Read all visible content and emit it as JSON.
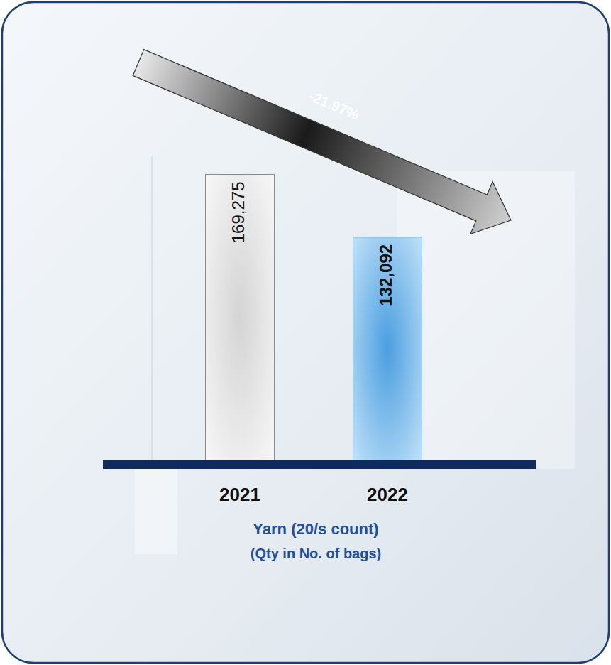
{
  "chart_data": {
    "type": "bar",
    "categories": [
      "2021",
      "2022"
    ],
    "values": [
      169275,
      132092
    ],
    "value_labels": [
      "169,275",
      "132,092"
    ],
    "colors": [
      "#d4d4d4",
      "#4b9ee0"
    ],
    "ylim": [
      0,
      180000
    ],
    "data_labels": true,
    "tick_labels": "x",
    "grid": false,
    "annotation": "-21.97%",
    "xlabel": "Yarn (20/s count)",
    "ylabel": "(Qty in No. of bags)"
  }
}
